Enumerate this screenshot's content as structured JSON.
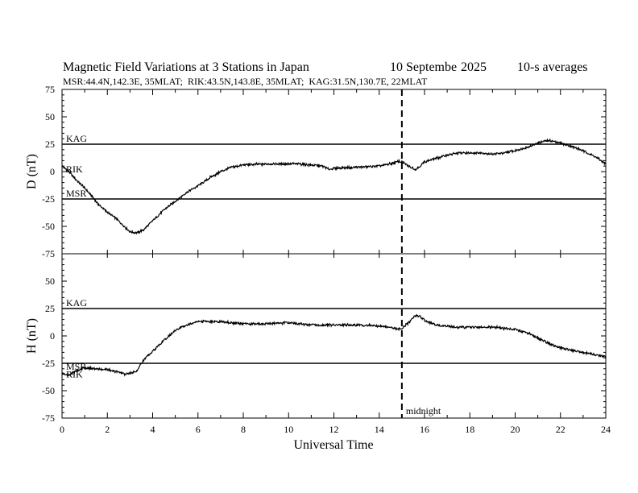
{
  "chart_data": {
    "type": "line",
    "title": "Magnetic Field Variations at 3 Stations in Japan",
    "date_day": "10 Septembe",
    "date_year": "2025",
    "averaging": "10-s averages",
    "stations_line": "MSR:44.4N,142.3E, 35MLAT;  RIK:43.5N,143.8E, 35MLAT;  KAG:31.5N,130.7E, 22MLAT",
    "xlabel": "Universal Time",
    "xlim": [
      0,
      24
    ],
    "xticks": [
      "0",
      "2",
      "4",
      "6",
      "8",
      "10",
      "12",
      "14",
      "16",
      "18",
      "20",
      "22",
      "24"
    ],
    "midnight": {
      "x": 15,
      "label": "midnight"
    },
    "panels": [
      {
        "ylabel": "D (nT)",
        "ylim": [
          -75,
          75
        ],
        "yticks": [
          "75",
          "50",
          "25",
          "0",
          "-25",
          "-50",
          "-75"
        ],
        "station_lines": [
          {
            "name": "KAG",
            "y": 25
          },
          {
            "name": "RIK",
            "y": -3
          },
          {
            "name": "MSR",
            "y": -25
          }
        ],
        "baselines": [
          25,
          -25
        ],
        "series": {
          "x": [
            0,
            0.3,
            0.6,
            1.0,
            1.3,
            1.6,
            2.0,
            2.4,
            2.7,
            3.0,
            3.3,
            3.6,
            4.0,
            4.5,
            5.0,
            5.5,
            6.0,
            6.5,
            7.0,
            7.5,
            8.0,
            9.0,
            10.0,
            10.5,
            11.0,
            11.5,
            11.8,
            12.0,
            13.0,
            14.0,
            14.5,
            14.8,
            15.0,
            15.3,
            15.6,
            15.8,
            16.0,
            16.5,
            17.0,
            17.5,
            18.0,
            18.5,
            19.0,
            19.5,
            20.0,
            20.5,
            21.0,
            21.3,
            21.6,
            22.0,
            22.5,
            23.0,
            23.5,
            24.0
          ],
          "y": [
            5,
            0,
            -7,
            -15,
            -22,
            -30,
            -37,
            -43,
            -49,
            -55,
            -56,
            -53,
            -45,
            -35,
            -27,
            -19,
            -13,
            -6,
            0,
            4,
            6,
            7,
            7,
            7,
            6,
            5,
            2,
            3,
            4,
            5,
            7,
            9,
            9,
            5,
            2,
            5,
            9,
            12,
            15,
            17,
            17,
            17,
            16,
            17,
            19,
            22,
            26,
            28,
            28,
            26,
            23,
            19,
            14,
            7
          ]
        }
      },
      {
        "ylabel": "H (nT)",
        "ylim": [
          -75,
          75
        ],
        "yticks": [
          "75",
          "50",
          "25",
          "0",
          "-25",
          "-50",
          "-75"
        ],
        "station_lines": [
          {
            "name": "KAG",
            "y": 25
          },
          {
            "name": "MSR",
            "y": -33
          },
          {
            "name": "RIK",
            "y": -40
          }
        ],
        "baselines": [
          25,
          -25
        ],
        "series": {
          "x": [
            0,
            0.3,
            0.6,
            1.0,
            1.5,
            2.0,
            2.5,
            2.8,
            3.0,
            3.3,
            3.6,
            4.0,
            4.5,
            5.0,
            5.5,
            6.0,
            6.5,
            7.0,
            7.5,
            8.0,
            9.0,
            10.0,
            11.0,
            12.0,
            13.0,
            14.0,
            14.5,
            14.8,
            15.0,
            15.3,
            15.6,
            15.8,
            16.0,
            16.5,
            17.0,
            17.5,
            18.0,
            18.5,
            19.0,
            19.5,
            20.0,
            20.5,
            21.0,
            21.5,
            22.0,
            22.5,
            23.0,
            23.5,
            24.0
          ],
          "y": [
            -34,
            -36,
            -32,
            -29,
            -30,
            -31,
            -33,
            -35,
            -34,
            -32,
            -22,
            -14,
            -4,
            5,
            10,
            13,
            13,
            13,
            12,
            11,
            11,
            12,
            10,
            10,
            10,
            9,
            8,
            6,
            7,
            12,
            19,
            18,
            14,
            10,
            9,
            8,
            8,
            8,
            8,
            7,
            6,
            3,
            -2,
            -7,
            -11,
            -13,
            -15,
            -17,
            -19
          ]
        }
      }
    ]
  }
}
